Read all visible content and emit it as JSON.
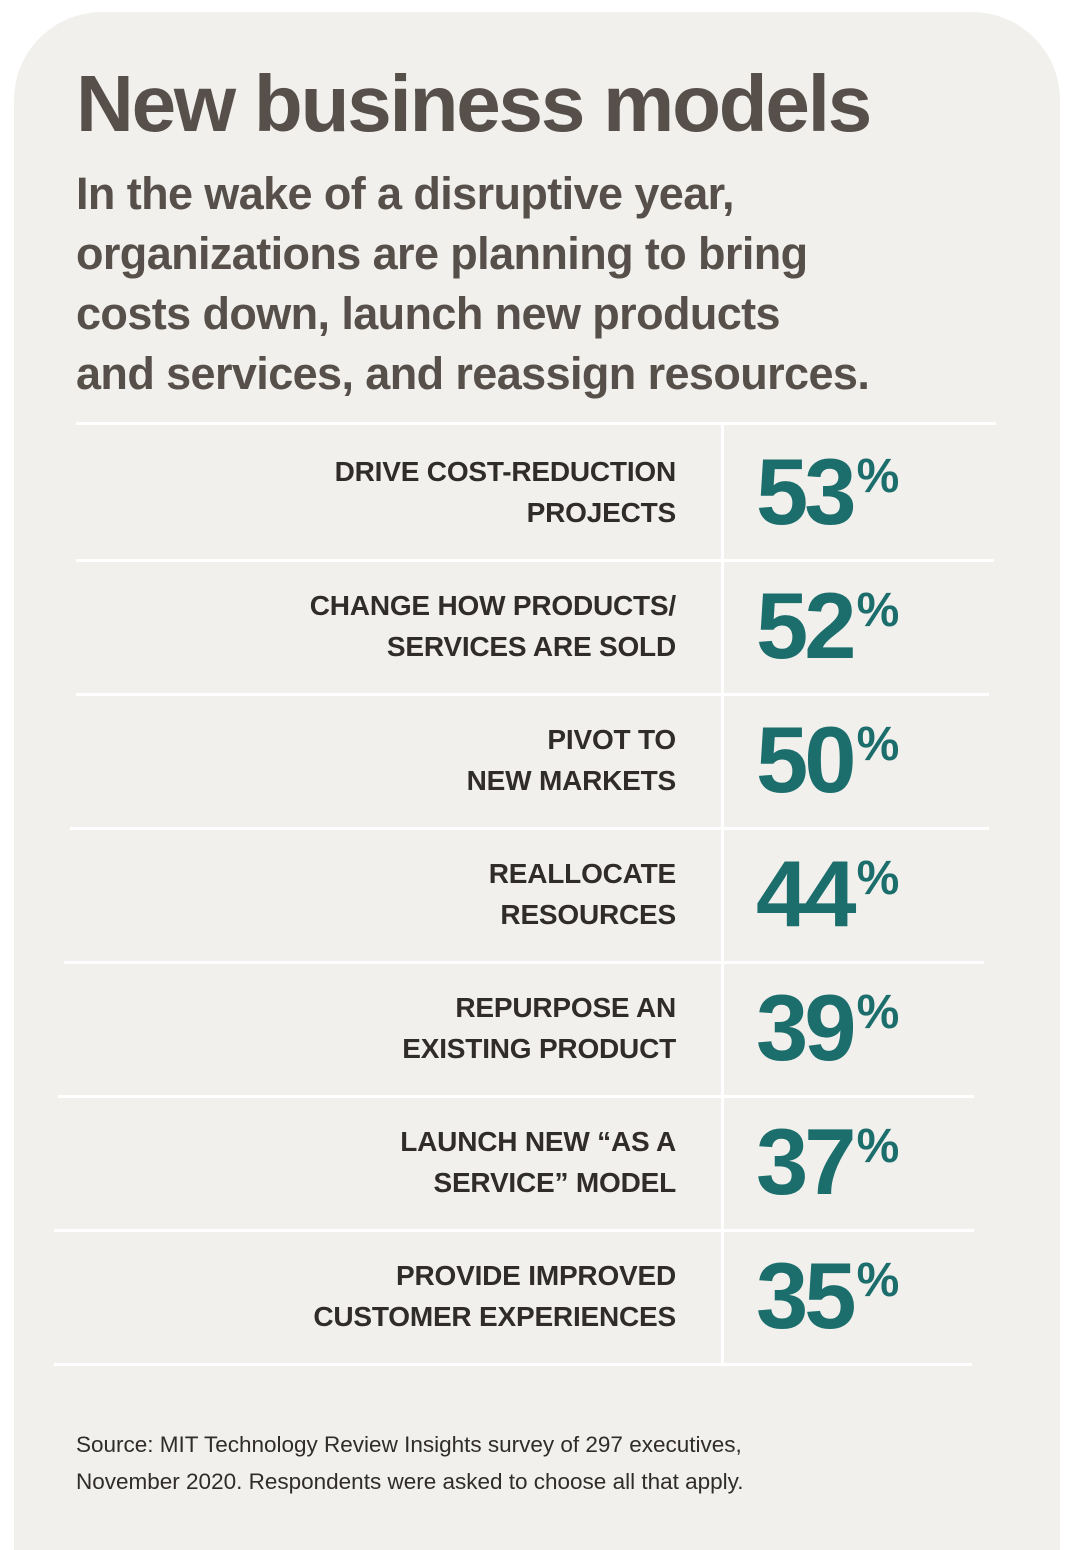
{
  "title": "New business models",
  "subtitle_lines": [
    "In the wake of a disruptive year,",
    "organizations are planning to bring",
    "costs down, launch new products",
    "and services, and reassign resources."
  ],
  "source_lines": [
    "Source: MIT Technology Review Insights survey of 297 executives,",
    "November 2020. Respondents were asked to choose all that apply."
  ],
  "colors": {
    "background": "#f1f0ed",
    "heading": "#57504a",
    "label": "#2f2c2a",
    "accent_teal": "#1c6e6c",
    "rule": "#ffffff"
  },
  "chart_data": {
    "type": "table",
    "unit": "%",
    "rows": [
      {
        "label_lines": [
          "DRIVE COST-REDUCTION",
          "PROJECTS"
        ],
        "value": 53
      },
      {
        "label_lines": [
          "CHANGE HOW PRODUCTS/",
          "SERVICES ARE SOLD"
        ],
        "value": 52
      },
      {
        "label_lines": [
          "PIVOT TO",
          "NEW MARKETS"
        ],
        "value": 50
      },
      {
        "label_lines": [
          "REALLOCATE",
          "RESOURCES"
        ],
        "value": 44
      },
      {
        "label_lines": [
          "REPURPOSE AN",
          "EXISTING PRODUCT"
        ],
        "value": 39
      },
      {
        "label_lines": [
          "LAUNCH NEW “AS A",
          "SERVICE” MODEL"
        ],
        "value": 37
      },
      {
        "label_lines": [
          "PROVIDE IMPROVED",
          "CUSTOMER EXPERIENCES"
        ],
        "value": 35
      }
    ]
  }
}
